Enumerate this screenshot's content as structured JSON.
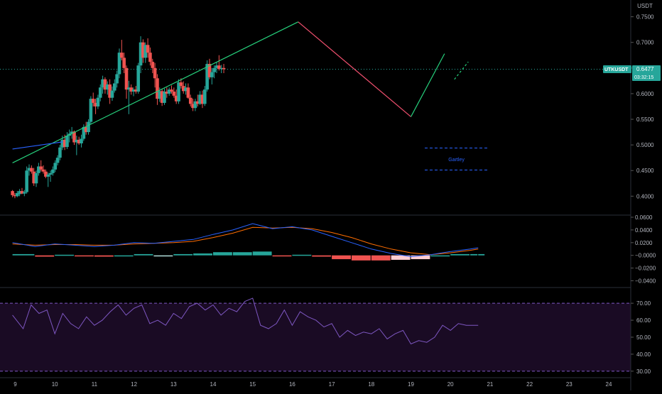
{
  "currency_label": "USDT",
  "symbol_label": "UTKUSDT",
  "last_price_label": "0.6477",
  "countdown_label": "03:32:15",
  "pattern_label": "Gartley",
  "colors": {
    "bull": "#26a69a",
    "bear": "#ef5350",
    "macd_line": "#2962ff",
    "signal_line": "#ff6d00",
    "hist_pos_strong": "#26a69a",
    "hist_pos_weak": "#b2dfdb",
    "hist_neg_strong": "#ef5350",
    "hist_neg_weak": "#ffcdd2",
    "rsi_line": "#7e57c2",
    "rsi_band": "#1a0b24",
    "pattern_green": "#26d07c",
    "pattern_red": "#f0506e",
    "pattern_label": "#2962ff",
    "axis_text": "#b2b5be"
  },
  "chart_data": [
    {
      "type": "candlestick",
      "title": "",
      "x_tick_labels": [
        "9",
        "10",
        "11",
        "12",
        "13",
        "14",
        "15",
        "16",
        "17",
        "18",
        "19",
        "20",
        "21",
        "22",
        "23",
        "24"
      ],
      "y_tick_labels": [
        "0.7500",
        "0.7000",
        "0.6500",
        "0.6000",
        "0.5500",
        "0.5000",
        "0.4500",
        "0.4000"
      ],
      "ylim": [
        0.37,
        0.755
      ],
      "ohlc": [
        [
          0.41,
          0.412,
          0.398,
          0.402
        ],
        [
          0.402,
          0.406,
          0.396,
          0.4
        ],
        [
          0.4,
          0.41,
          0.398,
          0.406
        ],
        [
          0.404,
          0.414,
          0.4,
          0.41
        ],
        [
          0.41,
          0.416,
          0.404,
          0.405
        ],
        [
          0.405,
          0.412,
          0.4,
          0.408
        ],
        [
          0.408,
          0.458,
          0.405,
          0.45
        ],
        [
          0.45,
          0.462,
          0.44,
          0.455
        ],
        [
          0.455,
          0.46,
          0.444,
          0.448
        ],
        [
          0.448,
          0.455,
          0.42,
          0.425
        ],
        [
          0.425,
          0.45,
          0.418,
          0.445
        ],
        [
          0.445,
          0.465,
          0.44,
          0.458
        ],
        [
          0.458,
          0.47,
          0.448,
          0.452
        ],
        [
          0.452,
          0.46,
          0.444,
          0.448
        ],
        [
          0.448,
          0.452,
          0.435,
          0.438
        ],
        [
          0.438,
          0.446,
          0.418,
          0.442
        ],
        [
          0.442,
          0.45,
          0.428,
          0.445
        ],
        [
          0.445,
          0.458,
          0.44,
          0.452
        ],
        [
          0.452,
          0.47,
          0.447,
          0.465
        ],
        [
          0.465,
          0.48,
          0.46,
          0.475
        ],
        [
          0.475,
          0.5,
          0.47,
          0.495
        ],
        [
          0.495,
          0.518,
          0.49,
          0.51
        ],
        [
          0.51,
          0.52,
          0.49,
          0.496
        ],
        [
          0.496,
          0.525,
          0.492,
          0.518
        ],
        [
          0.518,
          0.53,
          0.505,
          0.522
        ],
        [
          0.522,
          0.535,
          0.512,
          0.526
        ],
        [
          0.526,
          0.528,
          0.5,
          0.505
        ],
        [
          0.505,
          0.518,
          0.48,
          0.51
        ],
        [
          0.51,
          0.516,
          0.5,
          0.503
        ],
        [
          0.503,
          0.52,
          0.495,
          0.512
        ],
        [
          0.512,
          0.54,
          0.508,
          0.535
        ],
        [
          0.535,
          0.545,
          0.52,
          0.525
        ],
        [
          0.525,
          0.55,
          0.52,
          0.545
        ],
        [
          0.545,
          0.595,
          0.54,
          0.59
        ],
        [
          0.59,
          0.602,
          0.575,
          0.582
        ],
        [
          0.582,
          0.59,
          0.56,
          0.575
        ],
        [
          0.575,
          0.598,
          0.57,
          0.592
        ],
        [
          0.592,
          0.618,
          0.585,
          0.612
        ],
        [
          0.612,
          0.635,
          0.6,
          0.628
        ],
        [
          0.628,
          0.632,
          0.6,
          0.608
        ],
        [
          0.608,
          0.624,
          0.598,
          0.618
        ],
        [
          0.618,
          0.628,
          0.58,
          0.592
        ],
        [
          0.592,
          0.614,
          0.586,
          0.606
        ],
        [
          0.606,
          0.628,
          0.602,
          0.62
        ],
        [
          0.62,
          0.645,
          0.612,
          0.638
        ],
        [
          0.638,
          0.688,
          0.63,
          0.68
        ],
        [
          0.68,
          0.705,
          0.665,
          0.67
        ],
        [
          0.67,
          0.68,
          0.64,
          0.65
        ],
        [
          0.65,
          0.655,
          0.59,
          0.608
        ],
        [
          0.608,
          0.625,
          0.56,
          0.612
        ],
        [
          0.612,
          0.618,
          0.598,
          0.604
        ],
        [
          0.604,
          0.612,
          0.595,
          0.608
        ],
        [
          0.608,
          0.615,
          0.6,
          0.604
        ],
        [
          0.604,
          0.66,
          0.6,
          0.655
        ],
        [
          0.655,
          0.712,
          0.64,
          0.7
        ],
        [
          0.7,
          0.706,
          0.66,
          0.67
        ],
        [
          0.67,
          0.7,
          0.66,
          0.695
        ],
        [
          0.695,
          0.708,
          0.67,
          0.68
        ],
        [
          0.68,
          0.69,
          0.655,
          0.662
        ],
        [
          0.662,
          0.668,
          0.64,
          0.65
        ],
        [
          0.65,
          0.66,
          0.612,
          0.63
        ],
        [
          0.63,
          0.638,
          0.578,
          0.59
        ],
        [
          0.59,
          0.612,
          0.584,
          0.605
        ],
        [
          0.605,
          0.61,
          0.576,
          0.582
        ],
        [
          0.582,
          0.61,
          0.578,
          0.604
        ],
        [
          0.604,
          0.612,
          0.592,
          0.6
        ],
        [
          0.6,
          0.612,
          0.596,
          0.608
        ],
        [
          0.608,
          0.616,
          0.6,
          0.604
        ],
        [
          0.604,
          0.612,
          0.592,
          0.596
        ],
        [
          0.596,
          0.608,
          0.58,
          0.585
        ],
        [
          0.585,
          0.628,
          0.58,
          0.622
        ],
        [
          0.622,
          0.63,
          0.61,
          0.615
        ],
        [
          0.615,
          0.624,
          0.6,
          0.605
        ],
        [
          0.605,
          0.62,
          0.598,
          0.612
        ],
        [
          0.612,
          0.62,
          0.59,
          0.592
        ],
        [
          0.592,
          0.598,
          0.575,
          0.58
        ],
        [
          0.58,
          0.59,
          0.566,
          0.572
        ],
        [
          0.572,
          0.59,
          0.566,
          0.585
        ],
        [
          0.585,
          0.598,
          0.575,
          0.58
        ],
        [
          0.58,
          0.605,
          0.578,
          0.598
        ],
        [
          0.598,
          0.606,
          0.572,
          0.58
        ],
        [
          0.58,
          0.615,
          0.576,
          0.608
        ],
        [
          0.608,
          0.665,
          0.604,
          0.658
        ],
        [
          0.658,
          0.668,
          0.628,
          0.632
        ],
        [
          0.632,
          0.65,
          0.618,
          0.642
        ],
        [
          0.642,
          0.655,
          0.63,
          0.65
        ],
        [
          0.65,
          0.662,
          0.64,
          0.655
        ],
        [
          0.655,
          0.675,
          0.645,
          0.648
        ],
        [
          0.648,
          0.656,
          0.64,
          0.65
        ],
        [
          0.65,
          0.658,
          0.64,
          0.6477
        ]
      ],
      "candle_open_times": [
        8.93,
        8.99,
        9.05,
        9.11,
        9.17,
        9.23,
        9.29,
        9.35,
        9.41,
        9.47,
        9.53,
        9.59,
        9.65,
        9.71,
        9.77,
        9.83,
        9.89,
        9.95,
        10.01,
        10.07,
        10.13,
        10.19,
        10.25,
        10.31,
        10.37,
        10.43,
        10.49,
        10.55,
        10.61,
        10.67,
        10.73,
        10.79,
        10.85,
        10.91,
        10.97,
        11.03,
        11.09,
        11.15,
        11.21,
        11.27,
        11.33,
        11.39,
        11.45,
        11.51,
        11.57,
        11.63,
        11.69,
        11.75,
        11.81,
        11.87,
        11.93,
        11.99,
        12.05,
        12.11,
        12.17,
        12.23,
        12.29,
        12.35,
        12.41,
        12.47,
        12.53,
        12.59,
        12.65,
        12.71,
        12.77,
        12.83,
        12.89,
        12.95,
        13.01,
        13.07,
        13.13,
        13.19,
        13.25,
        13.31,
        13.37,
        13.43,
        13.49,
        13.55,
        13.61,
        13.67,
        13.73,
        13.79,
        13.85,
        13.91,
        13.97,
        14.03,
        14.09,
        14.15,
        14.21,
        14.27
      ],
      "day_labels_at": [
        9,
        10,
        11,
        12,
        13,
        14,
        15,
        16,
        17,
        18,
        19,
        20,
        21,
        22,
        23,
        24
      ],
      "pattern_lines": [
        {
          "from": [
            8.93,
            0.465
          ],
          "to": [
            16.15,
            0.74
          ],
          "color": "green"
        },
        {
          "from": [
            16.15,
            0.74
          ],
          "to": [
            19.0,
            0.555
          ],
          "color": "red"
        },
        {
          "from": [
            19.0,
            0.555
          ],
          "to": [
            19.85,
            0.678
          ],
          "color": "green"
        },
        {
          "from": [
            8.93,
            0.492
          ],
          "to": [
            10.2,
            0.506
          ],
          "color": "blue"
        }
      ],
      "pattern_dashed": [
        {
          "from": [
            20.1,
            0.628
          ],
          "to": [
            20.45,
            0.662
          ]
        }
      ],
      "pattern_box": {
        "x0": 19.35,
        "x1": 20.95,
        "ytop": 0.494,
        "ybottom": 0.451
      },
      "last_price": 0.6477
    },
    {
      "type": "line",
      "title": "",
      "name": "MACD",
      "y_tick_labels": [
        "0.0600",
        "0.0400",
        "0.0200",
        "−0.0000",
        "−0.0200",
        "−0.0400"
      ],
      "ylim": [
        -0.045,
        0.06
      ],
      "x": [
        8.93,
        9.5,
        10.0,
        10.5,
        11.0,
        11.5,
        12.0,
        12.5,
        13.0,
        13.5,
        14.0,
        14.5,
        15.0,
        15.5,
        16.0,
        16.5,
        17.0,
        17.5,
        18.0,
        18.5,
        19.0,
        19.5,
        20.0,
        20.5,
        20.7
      ],
      "macd": [
        0.02,
        0.014,
        0.018,
        0.016,
        0.014,
        0.016,
        0.02,
        0.019,
        0.022,
        0.025,
        0.033,
        0.04,
        0.05,
        0.042,
        0.045,
        0.04,
        0.03,
        0.02,
        0.01,
        0.003,
        -0.002,
        0.001,
        0.006,
        0.01,
        0.012
      ],
      "signal": [
        0.018,
        0.016,
        0.017,
        0.017,
        0.016,
        0.016,
        0.018,
        0.019,
        0.02,
        0.022,
        0.028,
        0.035,
        0.044,
        0.043,
        0.044,
        0.042,
        0.036,
        0.028,
        0.018,
        0.01,
        0.004,
        0.001,
        0.004,
        0.008,
        0.01
      ],
      "histogram": [
        0.002,
        -0.002,
        0.001,
        -0.001,
        -0.002,
        0.0,
        0.002,
        0.0,
        0.002,
        0.003,
        0.005,
        0.005,
        0.006,
        -0.001,
        0.001,
        -0.002,
        -0.006,
        -0.008,
        -0.008,
        -0.007,
        -0.006,
        0.0,
        0.002,
        0.002,
        0.002
      ]
    },
    {
      "type": "line",
      "title": "",
      "name": "RSI",
      "y_tick_labels": [
        "70.00",
        "60.00",
        "50.00",
        "40.00",
        "30.00"
      ],
      "ylim": [
        27,
        78
      ],
      "band": [
        30,
        70
      ],
      "x": [
        8.93,
        9.2,
        9.4,
        9.6,
        9.8,
        10.0,
        10.2,
        10.4,
        10.6,
        10.8,
        11.0,
        11.2,
        11.4,
        11.6,
        11.8,
        12.0,
        12.2,
        12.4,
        12.6,
        12.8,
        13.0,
        13.2,
        13.4,
        13.6,
        13.8,
        14.0,
        14.2,
        14.4,
        14.6,
        14.8,
        15.0,
        15.2,
        15.4,
        15.6,
        15.8,
        16.0,
        16.2,
        16.4,
        16.6,
        16.8,
        17.0,
        17.2,
        17.4,
        17.6,
        17.8,
        18.0,
        18.2,
        18.4,
        18.6,
        18.8,
        19.0,
        19.2,
        19.4,
        19.6,
        19.8,
        20.0,
        20.2,
        20.4,
        20.6,
        20.7
      ],
      "rsi": [
        63,
        55,
        69,
        64,
        66,
        52,
        64,
        58,
        55,
        62,
        57,
        60,
        65,
        69,
        63,
        67,
        69,
        58,
        60,
        57,
        64,
        61,
        68,
        70,
        66,
        69,
        63,
        67,
        65,
        71,
        73,
        57,
        55,
        58,
        66,
        57,
        65,
        62,
        60,
        56,
        58,
        50,
        54,
        51,
        53,
        52,
        55,
        49,
        52,
        54,
        46,
        48,
        47,
        50,
        57,
        54,
        58,
        57,
        57,
        57
      ]
    }
  ]
}
